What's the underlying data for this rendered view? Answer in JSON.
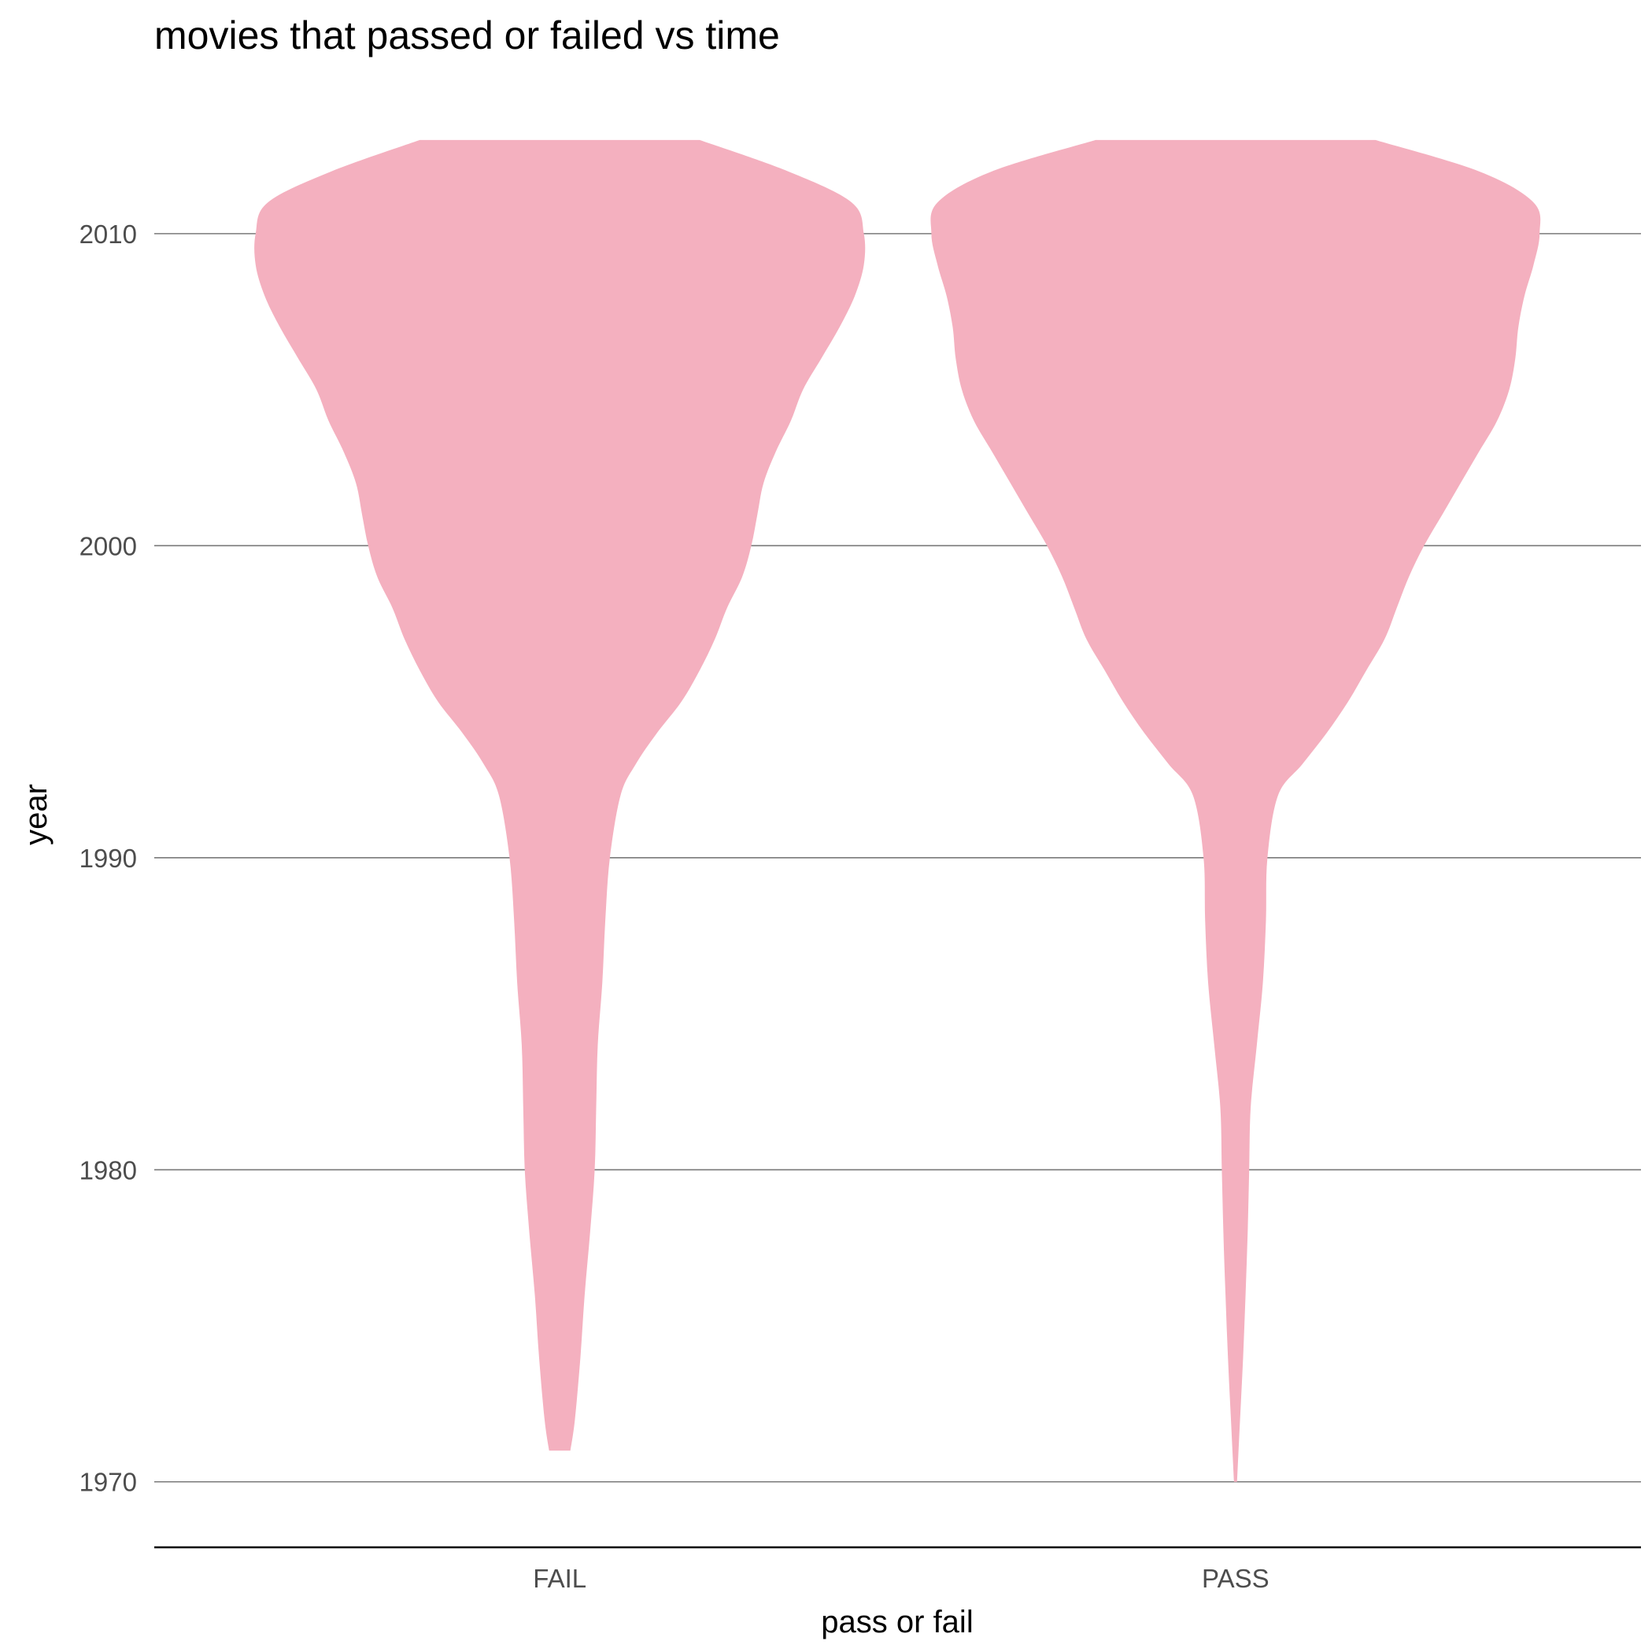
{
  "chart_data": {
    "type": "violin",
    "title": "movies that passed or failed vs time",
    "xlabel": "pass or fail",
    "ylabel": "year",
    "categories": [
      "FAIL",
      "PASS"
    ],
    "ylim": [
      1967.9,
      2013.2
    ],
    "yticks": [
      1970,
      1980,
      1990,
      2000,
      2010
    ],
    "grid": "horizontal major only",
    "legend": "none",
    "fill_color": "#f4b0bf",
    "series": [
      {
        "category": "FAIL",
        "min": 1971,
        "max": 2013,
        "density": [
          [
            1971,
            0.035
          ],
          [
            1972,
            0.05
          ],
          [
            1974,
            0.068
          ],
          [
            1976,
            0.082
          ],
          [
            1978,
            0.1
          ],
          [
            1980,
            0.115
          ],
          [
            1982,
            0.12
          ],
          [
            1984,
            0.125
          ],
          [
            1986,
            0.14
          ],
          [
            1988,
            0.15
          ],
          [
            1990,
            0.165
          ],
          [
            1992,
            0.2
          ],
          [
            1993,
            0.25
          ],
          [
            1994,
            0.32
          ],
          [
            1995,
            0.4
          ],
          [
            1996,
            0.46
          ],
          [
            1997,
            0.51
          ],
          [
            1998,
            0.55
          ],
          [
            1999,
            0.6
          ],
          [
            2000,
            0.63
          ],
          [
            2001,
            0.65
          ],
          [
            2002,
            0.67
          ],
          [
            2003,
            0.71
          ],
          [
            2004,
            0.76
          ],
          [
            2005,
            0.8
          ],
          [
            2006,
            0.86
          ],
          [
            2007,
            0.92
          ],
          [
            2008,
            0.97
          ],
          [
            2009,
            1.0
          ],
          [
            2010,
            1.0
          ],
          [
            2011,
            0.96
          ],
          [
            2012,
            0.75
          ],
          [
            2013,
            0.46
          ]
        ]
      },
      {
        "category": "PASS",
        "min": 1970,
        "max": 2013,
        "density": [
          [
            1970,
            0.005
          ],
          [
            1972,
            0.015
          ],
          [
            1974,
            0.025
          ],
          [
            1976,
            0.033
          ],
          [
            1978,
            0.04
          ],
          [
            1980,
            0.045
          ],
          [
            1982,
            0.05
          ],
          [
            1984,
            0.07
          ],
          [
            1986,
            0.09
          ],
          [
            1988,
            0.1
          ],
          [
            1990,
            0.105
          ],
          [
            1992,
            0.14
          ],
          [
            1993,
            0.22
          ],
          [
            1994,
            0.3
          ],
          [
            1995,
            0.37
          ],
          [
            1996,
            0.43
          ],
          [
            1997,
            0.49
          ],
          [
            1998,
            0.53
          ],
          [
            1999,
            0.57
          ],
          [
            2000,
            0.62
          ],
          [
            2001,
            0.68
          ],
          [
            2002,
            0.74
          ],
          [
            2003,
            0.8
          ],
          [
            2004,
            0.86
          ],
          [
            2005,
            0.9
          ],
          [
            2006,
            0.92
          ],
          [
            2007,
            0.93
          ],
          [
            2008,
            0.95
          ],
          [
            2009,
            0.98
          ],
          [
            2010,
            1.0
          ],
          [
            2011,
            0.98
          ],
          [
            2012,
            0.8
          ],
          [
            2013,
            0.46
          ]
        ]
      }
    ]
  }
}
